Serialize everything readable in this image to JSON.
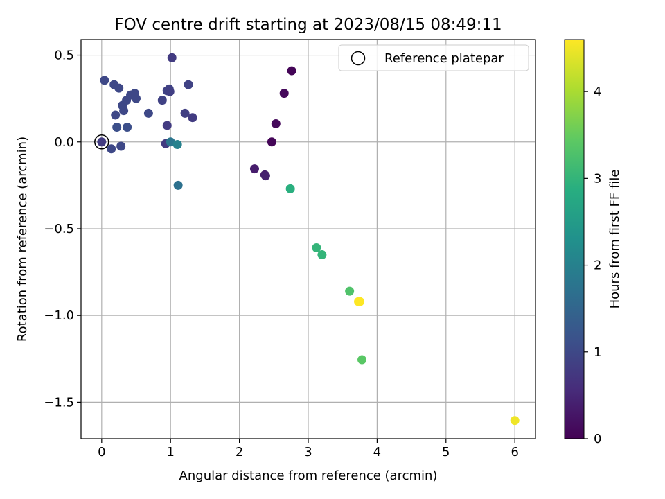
{
  "chart_data": {
    "type": "scatter",
    "title": "FOV centre drift starting at 2023/08/15 08:49:11",
    "xlabel": "Angular distance from reference (arcmin)",
    "ylabel": "Rotation from reference (arcmin)",
    "xlim": [
      -0.3,
      6.3
    ],
    "ylim": [
      -1.71,
      0.59
    ],
    "xticks": [
      0,
      1,
      2,
      3,
      4,
      5,
      6
    ],
    "xtick_labels": [
      "0",
      "1",
      "2",
      "3",
      "4",
      "5",
      "6"
    ],
    "yticks": [
      0.5,
      0.0,
      -0.5,
      -1.0,
      -1.5
    ],
    "ytick_labels": [
      "0.5",
      "0.0",
      "−0.5",
      "−1.0",
      "−1.5"
    ],
    "grid": true,
    "legend": {
      "placement": "top-right",
      "entries": [
        "Reference platepar"
      ]
    },
    "colorbar": {
      "label": "Hours from first FF file",
      "range": [
        0,
        4.6
      ],
      "ticks": [
        0,
        1,
        2,
        3,
        4
      ],
      "tick_labels": [
        "0",
        "1",
        "2",
        "3",
        "4"
      ],
      "colormap": "viridis"
    },
    "reference_point": {
      "x": 0,
      "y": 0
    },
    "points": [
      {
        "x": 0.0,
        "y": 0.0,
        "hours": 0.8
      },
      {
        "x": 0.04,
        "y": 0.355,
        "hours": 1.0
      },
      {
        "x": 0.14,
        "y": -0.04,
        "hours": 1.0
      },
      {
        "x": 0.18,
        "y": 0.33,
        "hours": 1.0
      },
      {
        "x": 0.2,
        "y": 0.155,
        "hours": 1.0
      },
      {
        "x": 0.22,
        "y": 0.085,
        "hours": 1.1
      },
      {
        "x": 0.25,
        "y": 0.31,
        "hours": 1.0
      },
      {
        "x": 0.28,
        "y": -0.025,
        "hours": 1.0
      },
      {
        "x": 0.3,
        "y": 0.21,
        "hours": 1.0
      },
      {
        "x": 0.32,
        "y": 0.18,
        "hours": 1.0
      },
      {
        "x": 0.36,
        "y": 0.24,
        "hours": 1.0
      },
      {
        "x": 0.37,
        "y": 0.085,
        "hours": 1.1
      },
      {
        "x": 0.42,
        "y": 0.27,
        "hours": 1.0
      },
      {
        "x": 0.48,
        "y": 0.28,
        "hours": 1.0
      },
      {
        "x": 0.5,
        "y": 0.25,
        "hours": 1.0
      },
      {
        "x": 0.68,
        "y": 0.165,
        "hours": 1.0
      },
      {
        "x": 0.88,
        "y": 0.24,
        "hours": 0.9
      },
      {
        "x": 0.93,
        "y": -0.01,
        "hours": 0.8
      },
      {
        "x": 0.95,
        "y": 0.095,
        "hours": 0.8
      },
      {
        "x": 0.95,
        "y": 0.295,
        "hours": 0.9
      },
      {
        "x": 0.98,
        "y": 0.305,
        "hours": 0.9
      },
      {
        "x": 0.99,
        "y": 0.29,
        "hours": 0.85
      },
      {
        "x": 1.0,
        "y": 0.0,
        "hours": 1.8
      },
      {
        "x": 1.02,
        "y": 0.485,
        "hours": 0.8
      },
      {
        "x": 1.1,
        "y": -0.015,
        "hours": 2.0
      },
      {
        "x": 1.11,
        "y": -0.25,
        "hours": 1.7
      },
      {
        "x": 1.21,
        "y": 0.165,
        "hours": 0.85
      },
      {
        "x": 1.26,
        "y": 0.33,
        "hours": 0.9
      },
      {
        "x": 1.32,
        "y": 0.14,
        "hours": 0.8
      },
      {
        "x": 2.22,
        "y": -0.155,
        "hours": 0.35
      },
      {
        "x": 2.37,
        "y": -0.19,
        "hours": 0.35
      },
      {
        "x": 2.38,
        "y": -0.195,
        "hours": 0.4
      },
      {
        "x": 2.47,
        "y": 0.0,
        "hours": 0.05
      },
      {
        "x": 2.53,
        "y": 0.105,
        "hours": 0.1
      },
      {
        "x": 2.65,
        "y": 0.28,
        "hours": 0.1
      },
      {
        "x": 2.74,
        "y": -0.27,
        "hours": 2.9
      },
      {
        "x": 2.76,
        "y": 0.41,
        "hours": 0.05
      },
      {
        "x": 3.12,
        "y": -0.61,
        "hours": 3.0
      },
      {
        "x": 3.2,
        "y": -0.65,
        "hours": 3.0
      },
      {
        "x": 3.6,
        "y": -0.86,
        "hours": 3.3
      },
      {
        "x": 3.73,
        "y": -0.92,
        "hours": 4.6
      },
      {
        "x": 3.75,
        "y": -0.92,
        "hours": 4.6
      },
      {
        "x": 3.78,
        "y": -1.255,
        "hours": 3.4
      },
      {
        "x": 6.0,
        "y": -1.605,
        "hours": 4.5
      }
    ]
  }
}
